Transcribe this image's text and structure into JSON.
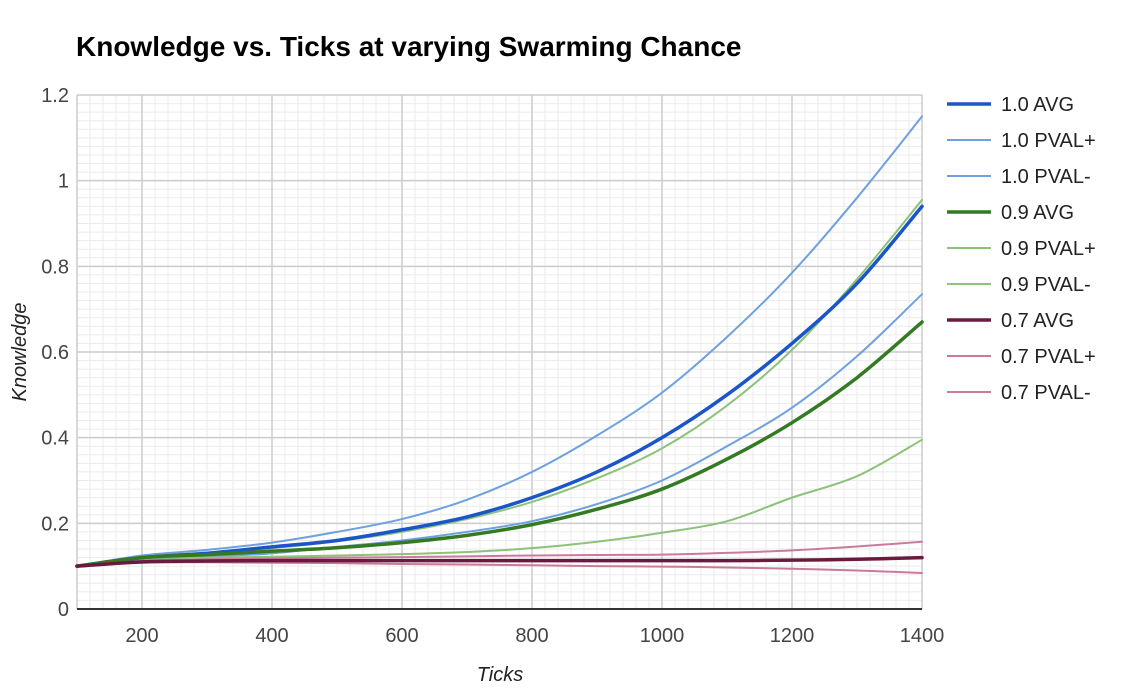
{
  "chart_data": {
    "type": "line",
    "title": "Knowledge vs. Ticks at varying Swarming Chance",
    "xlabel": "Ticks",
    "ylabel": "Knowledge",
    "xlim": [
      100,
      1400
    ],
    "ylim": [
      0,
      1.2
    ],
    "x_ticks": [
      200,
      400,
      600,
      800,
      1000,
      1200,
      1400
    ],
    "x_tick_labels": [
      "200",
      "400",
      "600",
      "800",
      "1000",
      "1200",
      "1400"
    ],
    "y_ticks": [
      0,
      0.2,
      0.4,
      0.6,
      0.8,
      1,
      1.2
    ],
    "y_tick_labels": [
      "0",
      "0.2",
      "0.4",
      "0.6",
      "0.8",
      "1",
      "1.2"
    ],
    "grid": true,
    "legend_position": "right",
    "x": [
      100,
      200,
      300,
      400,
      500,
      600,
      700,
      800,
      900,
      1000,
      1100,
      1200,
      1300,
      1400
    ],
    "series": [
      {
        "name": "1.0 AVG",
        "color": "#1a56c8",
        "width": 3.5,
        "values": [
          0.1,
          0.12,
          0.13,
          0.145,
          0.16,
          0.185,
          0.215,
          0.26,
          0.32,
          0.4,
          0.5,
          0.62,
          0.76,
          0.94
        ]
      },
      {
        "name": "1.0 PVAL+",
        "color": "#6fa0e0",
        "width": 2,
        "values": [
          0.1,
          0.125,
          0.138,
          0.155,
          0.18,
          0.21,
          0.255,
          0.32,
          0.405,
          0.505,
          0.635,
          0.785,
          0.96,
          1.15
        ]
      },
      {
        "name": "1.0 PVAL-",
        "color": "#6fa0e0",
        "width": 2,
        "values": [
          0.1,
          0.115,
          0.122,
          0.13,
          0.145,
          0.16,
          0.18,
          0.205,
          0.245,
          0.3,
          0.38,
          0.47,
          0.59,
          0.735
        ]
      },
      {
        "name": "0.9 AVG",
        "color": "#347a23",
        "width": 3.5,
        "values": [
          0.1,
          0.12,
          0.127,
          0.135,
          0.143,
          0.155,
          0.172,
          0.197,
          0.233,
          0.28,
          0.35,
          0.435,
          0.54,
          0.67
        ]
      },
      {
        "name": "0.9 PVAL+",
        "color": "#8cc27a",
        "width": 2,
        "values": [
          0.1,
          0.122,
          0.132,
          0.142,
          0.158,
          0.18,
          0.21,
          0.25,
          0.305,
          0.375,
          0.475,
          0.605,
          0.77,
          0.955
        ]
      },
      {
        "name": "0.9 PVAL-",
        "color": "#8cc27a",
        "width": 2,
        "values": [
          0.1,
          0.118,
          0.12,
          0.122,
          0.125,
          0.128,
          0.133,
          0.142,
          0.157,
          0.178,
          0.205,
          0.26,
          0.31,
          0.395
        ]
      },
      {
        "name": "0.7 AVG",
        "color": "#6b1a3f",
        "width": 3.5,
        "values": [
          0.1,
          0.11,
          0.112,
          0.113,
          0.113,
          0.113,
          0.113,
          0.113,
          0.113,
          0.113,
          0.113,
          0.114,
          0.116,
          0.12
        ]
      },
      {
        "name": "0.7 PVAL+",
        "color": "#cc7a9c",
        "width": 2,
        "values": [
          0.1,
          0.112,
          0.116,
          0.118,
          0.12,
          0.121,
          0.123,
          0.125,
          0.126,
          0.127,
          0.131,
          0.137,
          0.146,
          0.157
        ]
      },
      {
        "name": "0.7 PVAL-",
        "color": "#cc7a9c",
        "width": 2,
        "values": [
          0.1,
          0.108,
          0.109,
          0.108,
          0.107,
          0.105,
          0.104,
          0.102,
          0.1,
          0.099,
          0.097,
          0.094,
          0.09,
          0.084
        ]
      }
    ]
  }
}
